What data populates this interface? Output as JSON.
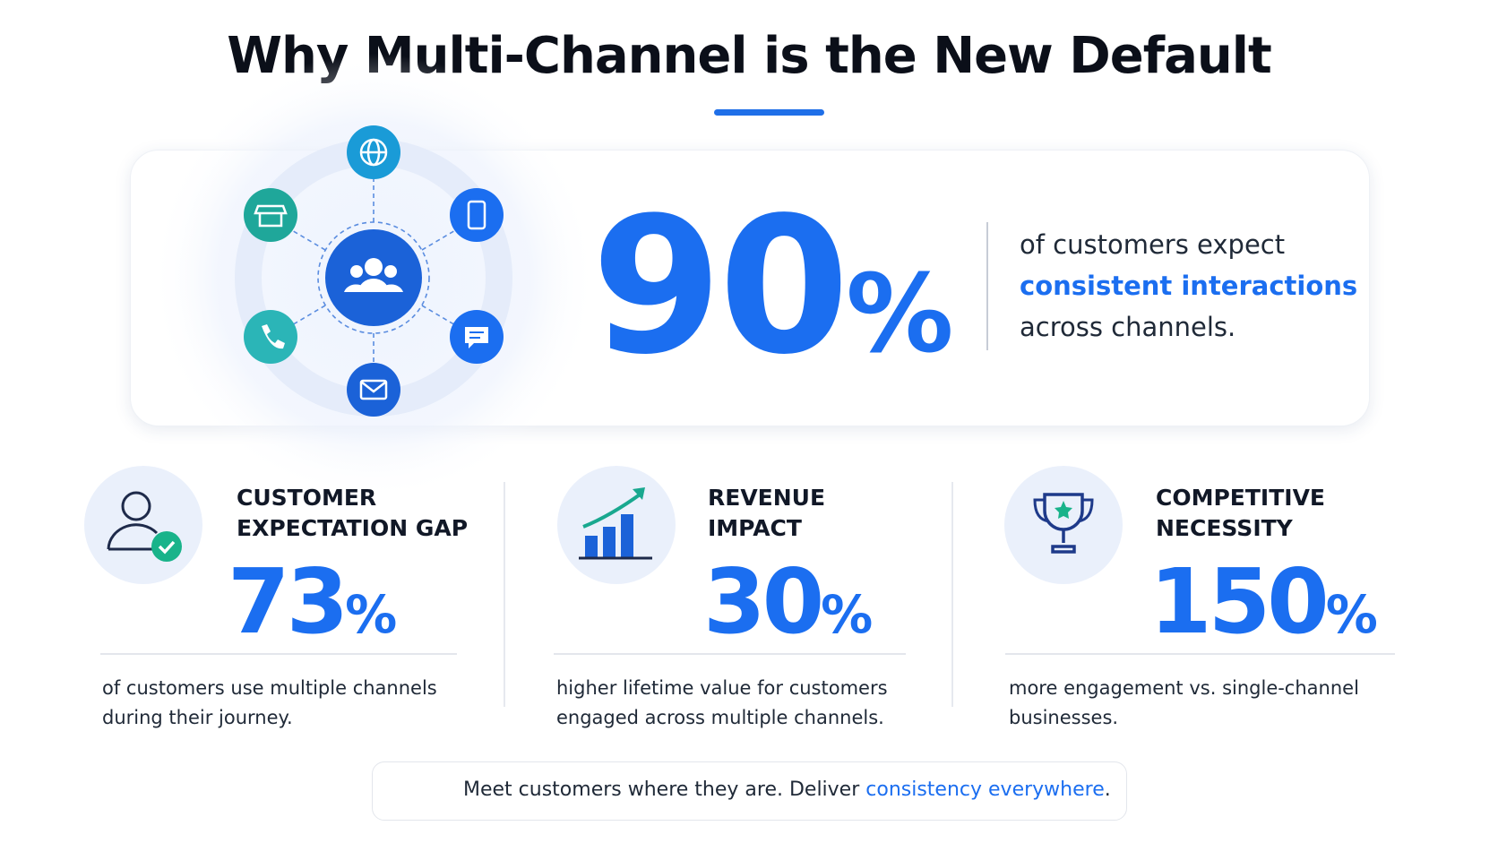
{
  "title": "Why Multi-Channel is the New Default",
  "hero": {
    "number": 90,
    "unit": "%",
    "text_before": "of customers expect",
    "text_highlight": "consistent interactions",
    "text_after": "across channels."
  },
  "stats": [
    {
      "title": [
        "CUSTOMER",
        "EXPECTATION GAP"
      ],
      "number": 73,
      "unit": "%",
      "description": "of customers use multiple channels during their journey."
    },
    {
      "title": [
        "REVENUE",
        "IMPACT"
      ],
      "number": 30,
      "unit": "%",
      "description": "higher lifetime value for customers engaged across multiple channels."
    },
    {
      "title": [
        "COMPETITIVE",
        "NECESSITY"
      ],
      "number": 150,
      "unit": "%",
      "description": "more engagement vs. single-channel businesses."
    }
  ],
  "footer": {
    "text_before": "Meet customers where they are. Deliver ",
    "text_highlight": "consistency everywhere",
    "text_after": "."
  }
}
